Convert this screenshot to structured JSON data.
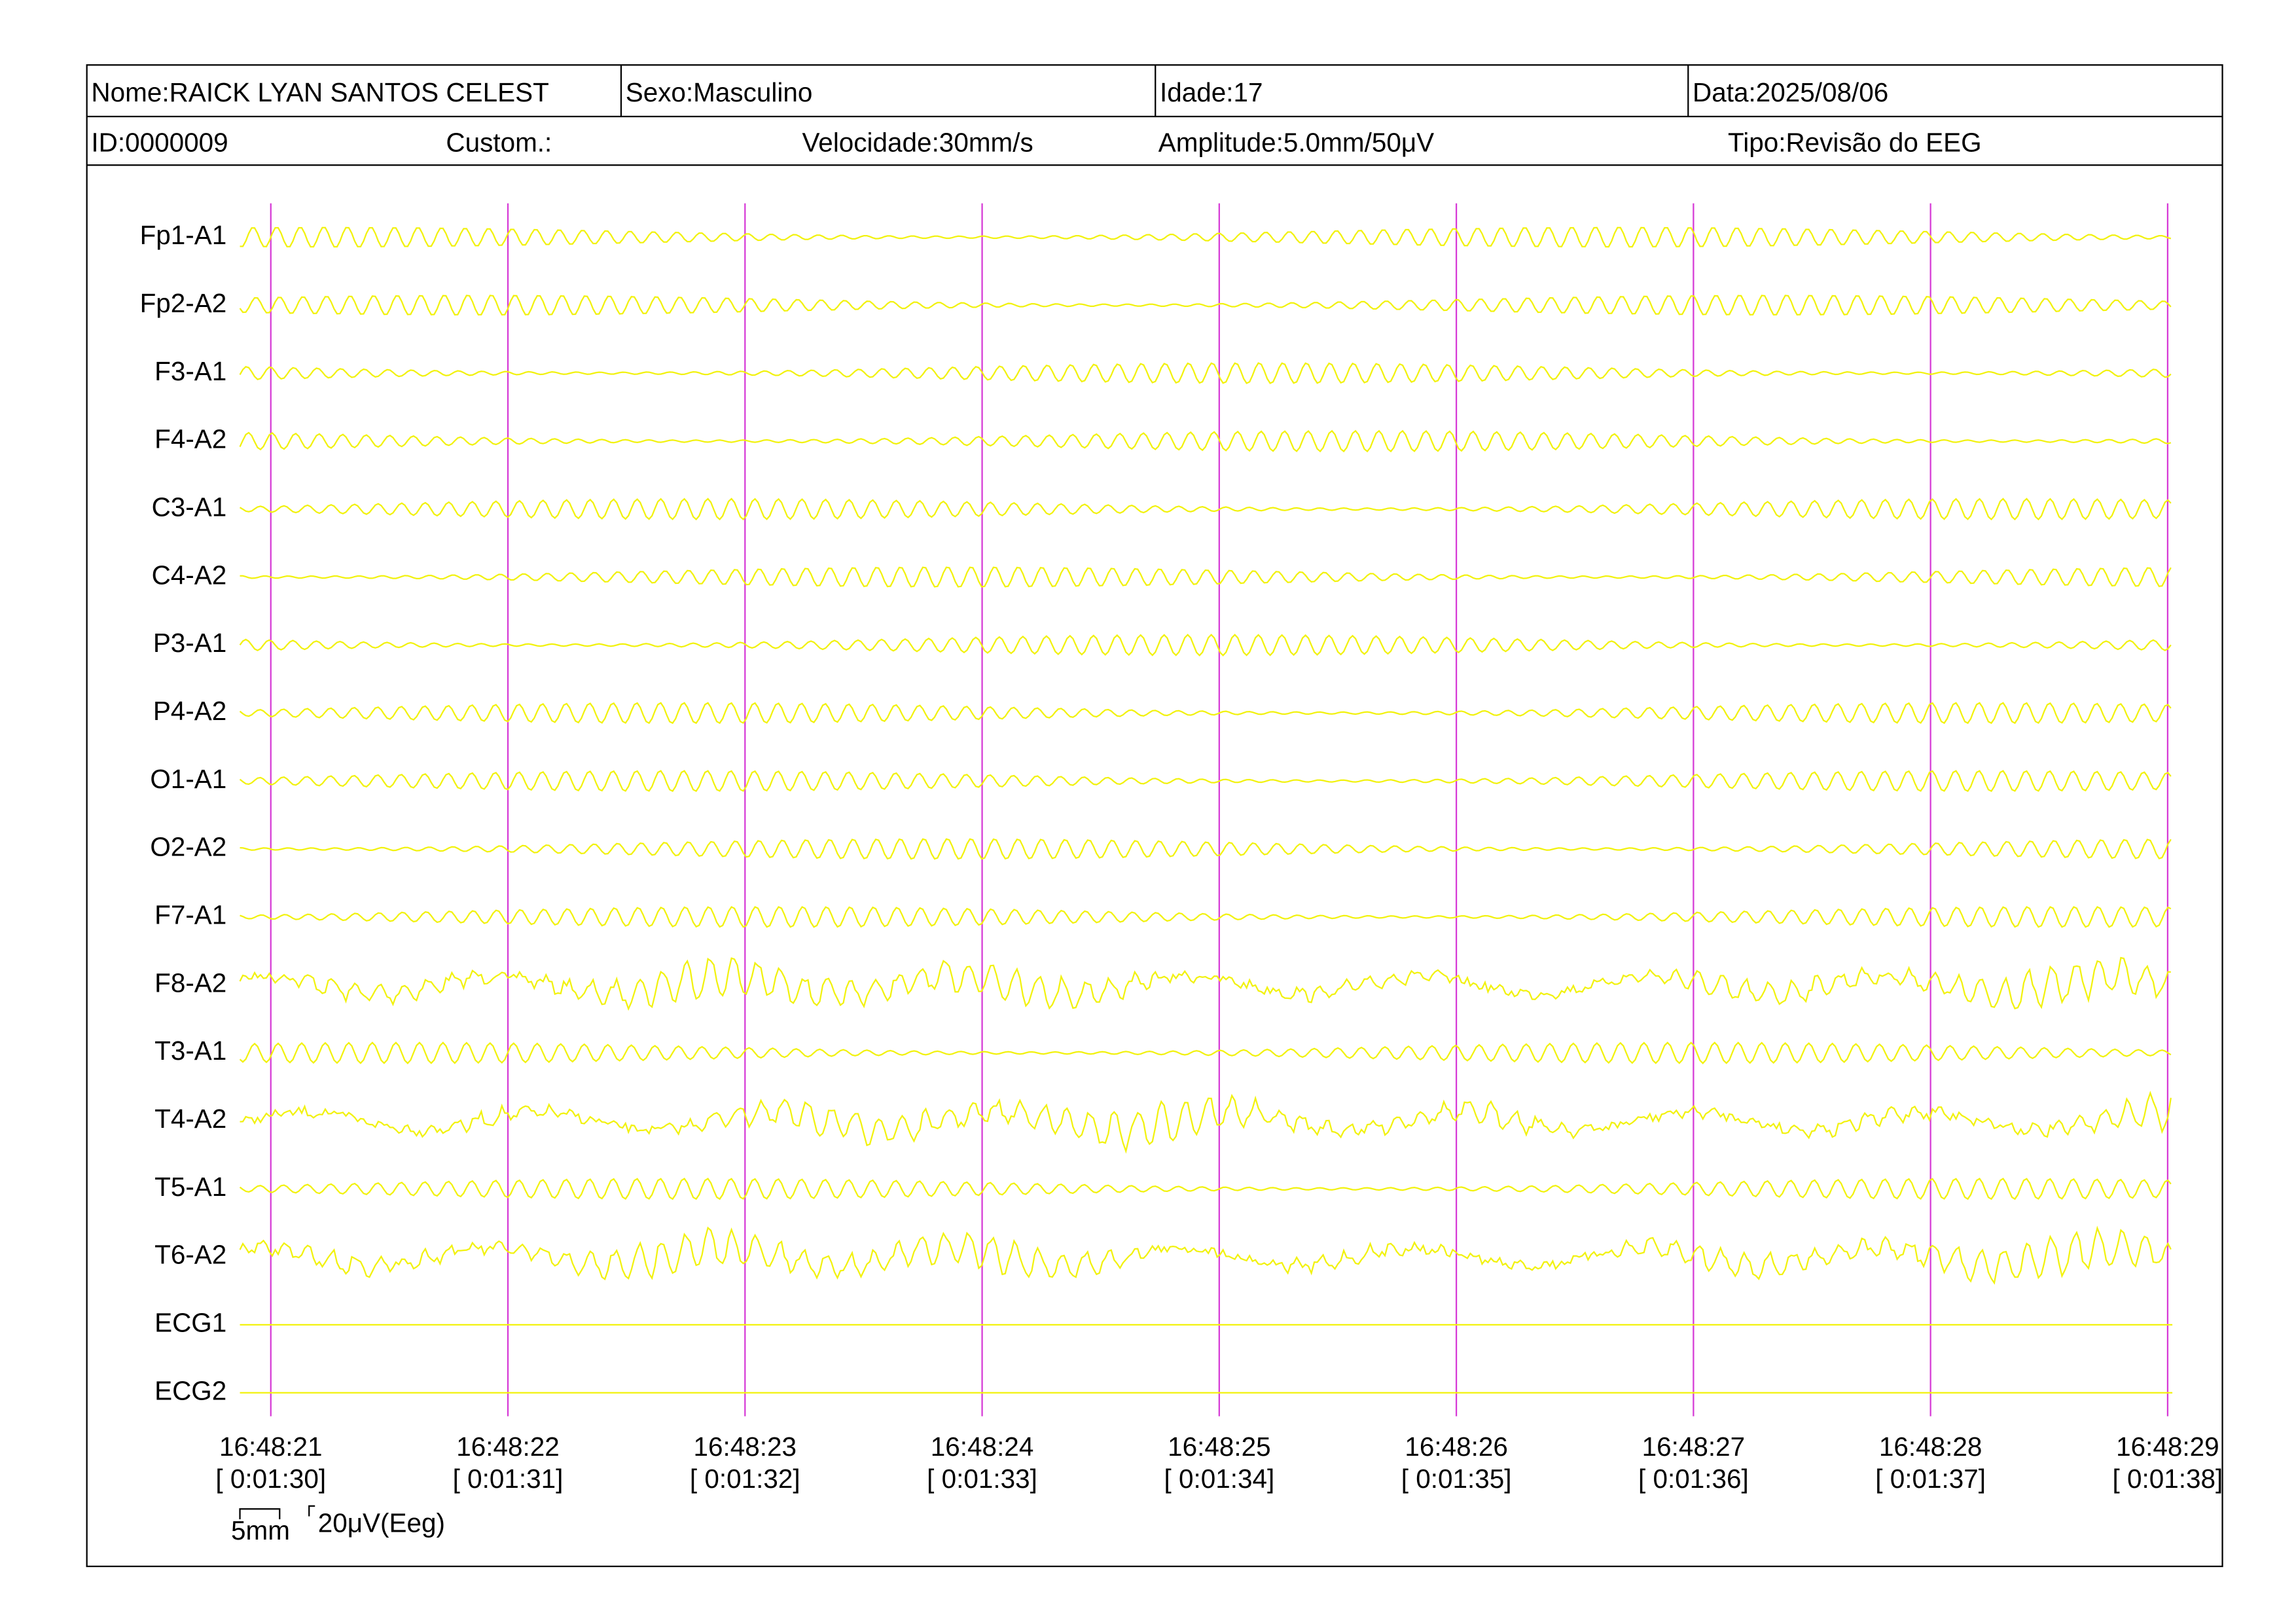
{
  "header": {
    "row1": [
      "Nome:RAICK LYAN SANTOS CELEST",
      "Sexo:Masculino",
      "Idade:17",
      "Data:2025/08/06"
    ],
    "row2": [
      "ID:0000009",
      "Custom.:",
      "Velocidade:30mm/s",
      "Amplitude:5.0mm/50μV",
      "Tipo:Revisão do EEG"
    ]
  },
  "channels": [
    "Fp1-A1",
    "Fp2-A2",
    "F3-A1",
    "F4-A2",
    "C3-A1",
    "C4-A2",
    "P3-A1",
    "P4-A2",
    "O1-A1",
    "O2-A2",
    "F7-A1",
    "F8-A2",
    "T3-A1",
    "T4-A2",
    "T5-A1",
    "T6-A2",
    "ECG1",
    "ECG2"
  ],
  "times": [
    {
      "clock": "16:48:21",
      "elapsed": "[ 0:01:30]"
    },
    {
      "clock": "16:48:22",
      "elapsed": "[ 0:01:31]"
    },
    {
      "clock": "16:48:23",
      "elapsed": "[ 0:01:32]"
    },
    {
      "clock": "16:48:24",
      "elapsed": "[ 0:01:33]"
    },
    {
      "clock": "16:48:25",
      "elapsed": "[ 0:01:34]"
    },
    {
      "clock": "16:48:26",
      "elapsed": "[ 0:01:35]"
    },
    {
      "clock": "16:48:27",
      "elapsed": "[ 0:01:36]"
    },
    {
      "clock": "16:48:28",
      "elapsed": "[ 0:01:37]"
    },
    {
      "clock": "16:48:29",
      "elapsed": "[ 0:01:38]"
    }
  ],
  "scale": {
    "time": "5mm",
    "amplitude": "20μV(Eeg)"
  }
}
